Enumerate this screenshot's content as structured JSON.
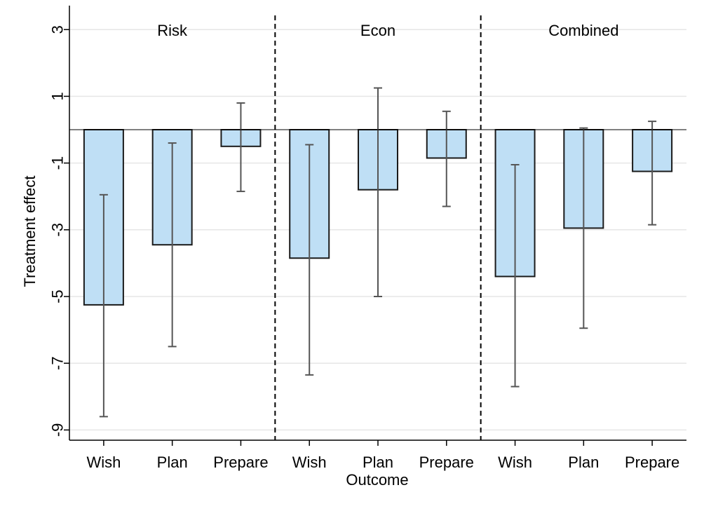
{
  "chart_data": {
    "type": "bar",
    "xlabel": "Outcome",
    "ylabel": "Treatment effect",
    "ylim": [
      -9.6,
      3.4
    ],
    "yticks": [
      3,
      1,
      -1,
      -3,
      -5,
      -7,
      -9
    ],
    "grid": true,
    "colors": {
      "bar_fill": "#bfdff5",
      "bar_stroke": "#1a1a1a",
      "error_bar": "#555555",
      "grid": "#e6e6e6",
      "divider": "#000000"
    },
    "panels": [
      {
        "title": "Risk",
        "categories": [
          "Wish",
          "Plan",
          "Prepare"
        ],
        "values": [
          -5.25,
          -3.45,
          -0.5
        ],
        "ci_low": [
          -8.6,
          -6.5,
          -1.85
        ],
        "ci_high": [
          -1.95,
          -0.4,
          0.8
        ]
      },
      {
        "title": "Econ",
        "categories": [
          "Wish",
          "Plan",
          "Prepare"
        ],
        "values": [
          -3.85,
          -1.8,
          -0.85
        ],
        "ci_low": [
          -7.35,
          -5.0,
          -2.3
        ],
        "ci_high": [
          -0.45,
          1.25,
          0.55
        ]
      },
      {
        "title": "Combined",
        "categories": [
          "Wish",
          "Plan",
          "Prepare"
        ],
        "values": [
          -4.4,
          -2.95,
          -1.25
        ],
        "ci_low": [
          -7.7,
          -5.95,
          -2.85
        ],
        "ci_high": [
          -1.05,
          0.05,
          0.25
        ]
      }
    ]
  }
}
